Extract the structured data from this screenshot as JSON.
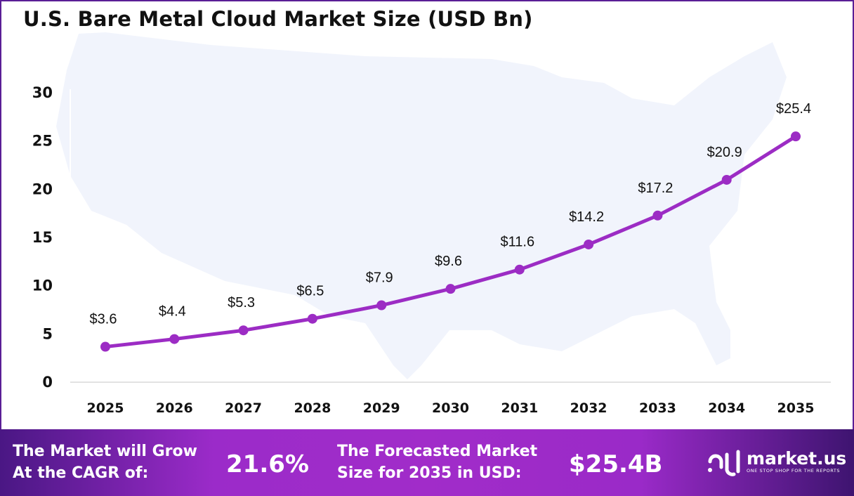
{
  "title": "U.S. Bare Metal Cloud Market Size (USD Bn)",
  "chart_data": {
    "type": "line",
    "title": "U.S. Bare Metal Cloud Market Size (USD Bn)",
    "categories": [
      "2025",
      "2026",
      "2027",
      "2028",
      "2029",
      "2030",
      "2031",
      "2032",
      "2033",
      "2034",
      "2035"
    ],
    "values": [
      3.6,
      4.4,
      5.3,
      6.5,
      7.9,
      9.6,
      11.6,
      14.2,
      17.2,
      20.9,
      25.4
    ],
    "data_labels": [
      "$3.6",
      "$4.4",
      "$5.3",
      "$6.5",
      "$7.9",
      "$9.6",
      "$11.6",
      "$14.2",
      "$17.2",
      "$20.9",
      "$25.4"
    ],
    "yticks": [
      0,
      5,
      10,
      15,
      20,
      25,
      30
    ],
    "ylim": [
      0,
      30
    ],
    "grid": false,
    "line_color": "#9c2cc4",
    "background_image": "us-map-silhouette"
  },
  "footer": {
    "cagr_label_1": "The Market will Grow",
    "cagr_label_2": "At the CAGR of:",
    "cagr_value": "21.6%",
    "forecast_label_1": "The Forecasted Market",
    "forecast_label_2": "Size for 2035 in USD:",
    "forecast_value": "$25.4B",
    "logo_name": "market.us",
    "logo_tagline": "ONE STOP SHOP FOR THE REPORTS"
  }
}
